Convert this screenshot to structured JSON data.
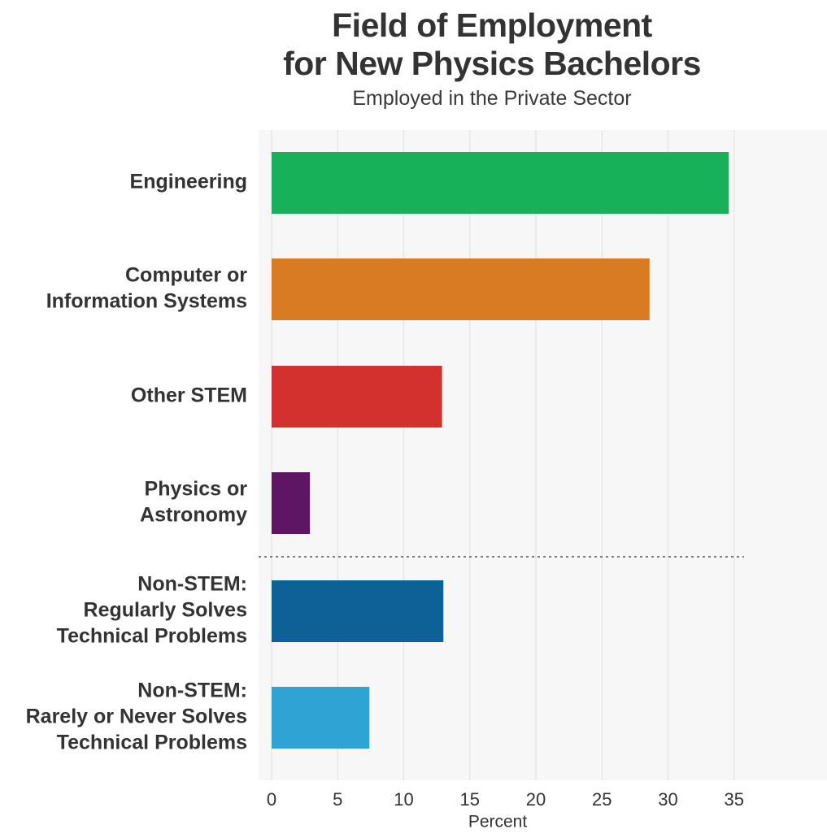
{
  "chart_data": {
    "type": "bar",
    "orientation": "horizontal",
    "title_lines": [
      "Field of Employment",
      "for New Physics Bachelors"
    ],
    "subtitle": "Employed in the Private Sector",
    "xlabel": "Percent",
    "ylabel": "",
    "xlim": [
      0,
      35
    ],
    "xticks": [
      0,
      5,
      10,
      15,
      20,
      25,
      30,
      35
    ],
    "grid": true,
    "legend": "none",
    "categories": [
      [
        "Engineering"
      ],
      [
        "Computer or",
        "Information Systems"
      ],
      [
        "Other STEM"
      ],
      [
        "Physics or",
        "Astronomy"
      ],
      [
        "Non-STEM:",
        "Regularly Solves",
        "Technical Problems"
      ],
      [
        "Non-STEM:",
        "Rarely or Never Solves",
        "Technical Problems"
      ]
    ],
    "values": [
      34.6,
      28.6,
      12.9,
      2.9,
      13.0,
      7.4
    ],
    "colors": [
      "#17b15a",
      "#d97b22",
      "#d2312e",
      "#5e1564",
      "#0e6196",
      "#30a3d5"
    ],
    "divider_after_index": 3,
    "divider_style": "dotted"
  }
}
